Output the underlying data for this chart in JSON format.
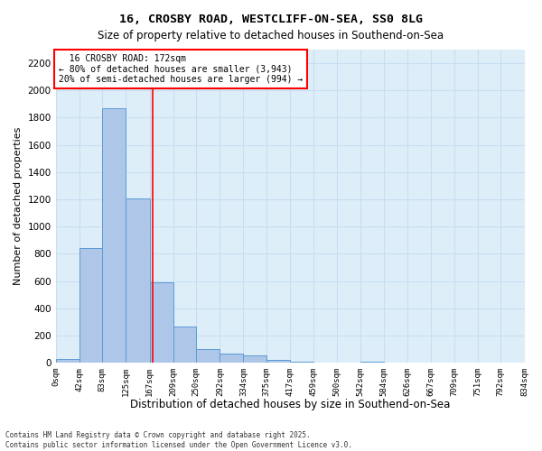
{
  "title1": "16, CROSBY ROAD, WESTCLIFF-ON-SEA, SS0 8LG",
  "title2": "Size of property relative to detached houses in Southend-on-Sea",
  "xlabel": "Distribution of detached houses by size in Southend-on-Sea",
  "ylabel": "Number of detached properties",
  "annotation_line1": "  16 CROSBY ROAD: 172sqm",
  "annotation_line2": "← 80% of detached houses are smaller (3,943)",
  "annotation_line3": "20% of semi-detached houses are larger (994) →",
  "footer1": "Contains HM Land Registry data © Crown copyright and database right 2025.",
  "footer2": "Contains public sector information licensed under the Open Government Licence v3.0.",
  "bar_edges": [
    0,
    42,
    83,
    125,
    167,
    209,
    250,
    292,
    334,
    375,
    417,
    459,
    500,
    542,
    584,
    626,
    667,
    709,
    751,
    792,
    834
  ],
  "bar_heights": [
    25,
    840,
    1870,
    1210,
    590,
    265,
    100,
    70,
    55,
    18,
    5,
    0,
    0,
    5,
    0,
    0,
    0,
    0,
    0,
    0
  ],
  "bar_color": "#aec6e8",
  "bar_edgecolor": "#5b9bd5",
  "grid_color": "#c8ddf0",
  "bg_color": "#ddeef9",
  "redline_x": 172,
  "ylim": [
    0,
    2300
  ],
  "yticks": [
    0,
    200,
    400,
    600,
    800,
    1000,
    1200,
    1400,
    1600,
    1800,
    2000,
    2200
  ]
}
